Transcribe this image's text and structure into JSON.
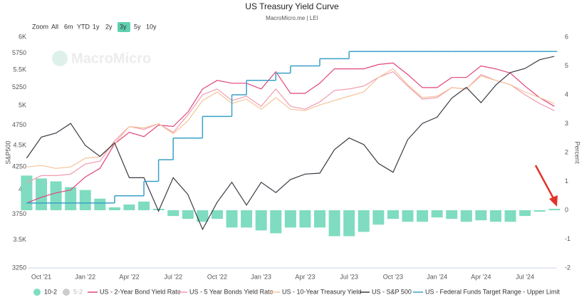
{
  "chart_data": {
    "type": "combo",
    "title": "US Treasury Yield Curve",
    "subtitle": "MacroMicro.me | LEI",
    "watermark": "MacroMicro",
    "zoom_label": "Zoom",
    "zoom_buttons": [
      "All",
      "6m",
      "YTD",
      "1y",
      "2y",
      "3y",
      "5y",
      "10y"
    ],
    "zoom_active": "3y",
    "ylabel": "S&P500",
    "y2label": "Percent",
    "ylog": true,
    "grid": false,
    "ylim": [
      3250,
      6000
    ],
    "yticks": [
      3250,
      {
        "value": 3500,
        "label": "3.5K"
      },
      3750,
      {
        "value": 4000,
        "label": "4K"
      },
      4250,
      {
        "value": 4500,
        "label": "4.5K"
      },
      4750,
      {
        "value": 5000,
        "label": "5K"
      },
      5250,
      {
        "value": 5500,
        "label": "5.5K"
      },
      5750,
      {
        "value": 6000,
        "label": "6K"
      }
    ],
    "y2lim": [
      -2,
      6
    ],
    "y2ticks": [
      -2,
      -1,
      0,
      1,
      2,
      3,
      4,
      5,
      6
    ],
    "categories": [
      null,
      "Oct '21",
      null,
      null,
      "Jan '22",
      null,
      null,
      "Apr '22",
      null,
      null,
      "Jul '22",
      null,
      null,
      "Oct '22",
      null,
      null,
      "Jan '23",
      null,
      null,
      "Apr '23",
      null,
      null,
      "Jul '23",
      null,
      null,
      "Oct '23",
      null,
      null,
      "Jan '24",
      null,
      null,
      "Apr '24",
      null,
      null,
      "Jul '24",
      null,
      null
    ],
    "series": [
      {
        "name": "10-2",
        "kind": "column",
        "axis": "y2",
        "color": "#7fdcc0",
        "values": [
          1.2,
          1.1,
          1.0,
          0.8,
          0.7,
          0.4,
          0.1,
          0.2,
          0.3,
          0.05,
          -0.2,
          -0.3,
          -0.4,
          -0.3,
          -0.6,
          -0.6,
          -0.7,
          -0.8,
          -0.6,
          -0.6,
          -0.6,
          -0.9,
          -0.9,
          -0.75,
          -0.5,
          -0.3,
          -0.4,
          -0.4,
          -0.25,
          -0.3,
          -0.4,
          -0.35,
          -0.4,
          -0.4,
          -0.2,
          -0.05,
          0.05
        ]
      },
      {
        "name": "5-2",
        "kind": "column",
        "axis": "y2",
        "color": "#cccccc",
        "visible": false
      },
      {
        "name": "US - 2-Year Bond Yield Rate",
        "kind": "line",
        "axis": "y2",
        "color": "#e0457b",
        "values": [
          0.25,
          0.45,
          0.6,
          0.7,
          1.15,
          1.45,
          2.3,
          2.7,
          2.55,
          2.95,
          2.9,
          3.4,
          4.2,
          4.5,
          4.4,
          4.4,
          4.2,
          4.8,
          4.05,
          4.05,
          4.4,
          4.9,
          4.9,
          4.9,
          5.05,
          5.1,
          4.7,
          4.25,
          4.25,
          4.6,
          4.6,
          5.0,
          4.9,
          4.75,
          4.3,
          3.9,
          3.6
        ]
      },
      {
        "name": "US - 5 Year Bonds Yield Rate",
        "kind": "line",
        "axis": "y2",
        "color": "#f29bb0",
        "values": [
          0.95,
          1.2,
          1.2,
          1.25,
          1.6,
          1.7,
          2.4,
          2.9,
          2.8,
          3.0,
          2.7,
          3.3,
          4.0,
          4.2,
          3.8,
          3.95,
          3.6,
          4.2,
          3.6,
          3.5,
          3.75,
          4.15,
          4.2,
          4.3,
          4.6,
          4.8,
          4.3,
          3.85,
          3.9,
          4.25,
          4.2,
          4.7,
          4.5,
          4.35,
          4.0,
          3.7,
          3.45
        ]
      },
      {
        "name": "US - 10-Year Treasury Yield",
        "kind": "line",
        "axis": "y2",
        "color": "#f5c39a",
        "values": [
          1.5,
          1.55,
          1.45,
          1.5,
          1.8,
          1.85,
          2.3,
          2.9,
          2.85,
          3.0,
          2.65,
          3.1,
          3.8,
          4.1,
          3.7,
          3.85,
          3.5,
          3.9,
          3.5,
          3.45,
          3.65,
          3.8,
          3.95,
          4.1,
          4.6,
          4.9,
          4.35,
          3.9,
          3.95,
          4.25,
          4.2,
          4.65,
          4.5,
          4.35,
          4.1,
          3.9,
          3.7
        ]
      },
      {
        "name": "US - S&P 500",
        "kind": "line",
        "axis": "y",
        "color": "#3a3a44",
        "values": [
          4350,
          4600,
          4650,
          4770,
          4500,
          4370,
          4530,
          4130,
          4130,
          3780,
          4130,
          3950,
          3600,
          3870,
          4080,
          3840,
          4080,
          3970,
          4110,
          4170,
          4180,
          4450,
          4590,
          4510,
          4290,
          4190,
          4570,
          4770,
          4850,
          5100,
          5250,
          5040,
          5280,
          5460,
          5520,
          5650,
          5700
        ]
      },
      {
        "name": "US - Federal Funds Target Range - Upper Limit",
        "kind": "step",
        "axis": "y2",
        "color": "#3aa0c8",
        "values": [
          0.25,
          0.25,
          0.25,
          0.25,
          0.25,
          0.25,
          0.5,
          0.5,
          1.0,
          1.75,
          2.5,
          2.5,
          3.25,
          3.25,
          4.0,
          4.5,
          4.5,
          4.75,
          5.0,
          5.0,
          5.25,
          5.25,
          5.5,
          5.5,
          5.5,
          5.5,
          5.5,
          5.5,
          5.5,
          5.5,
          5.5,
          5.5,
          5.5,
          5.5,
          5.5,
          5.5,
          5.5
        ]
      }
    ]
  }
}
